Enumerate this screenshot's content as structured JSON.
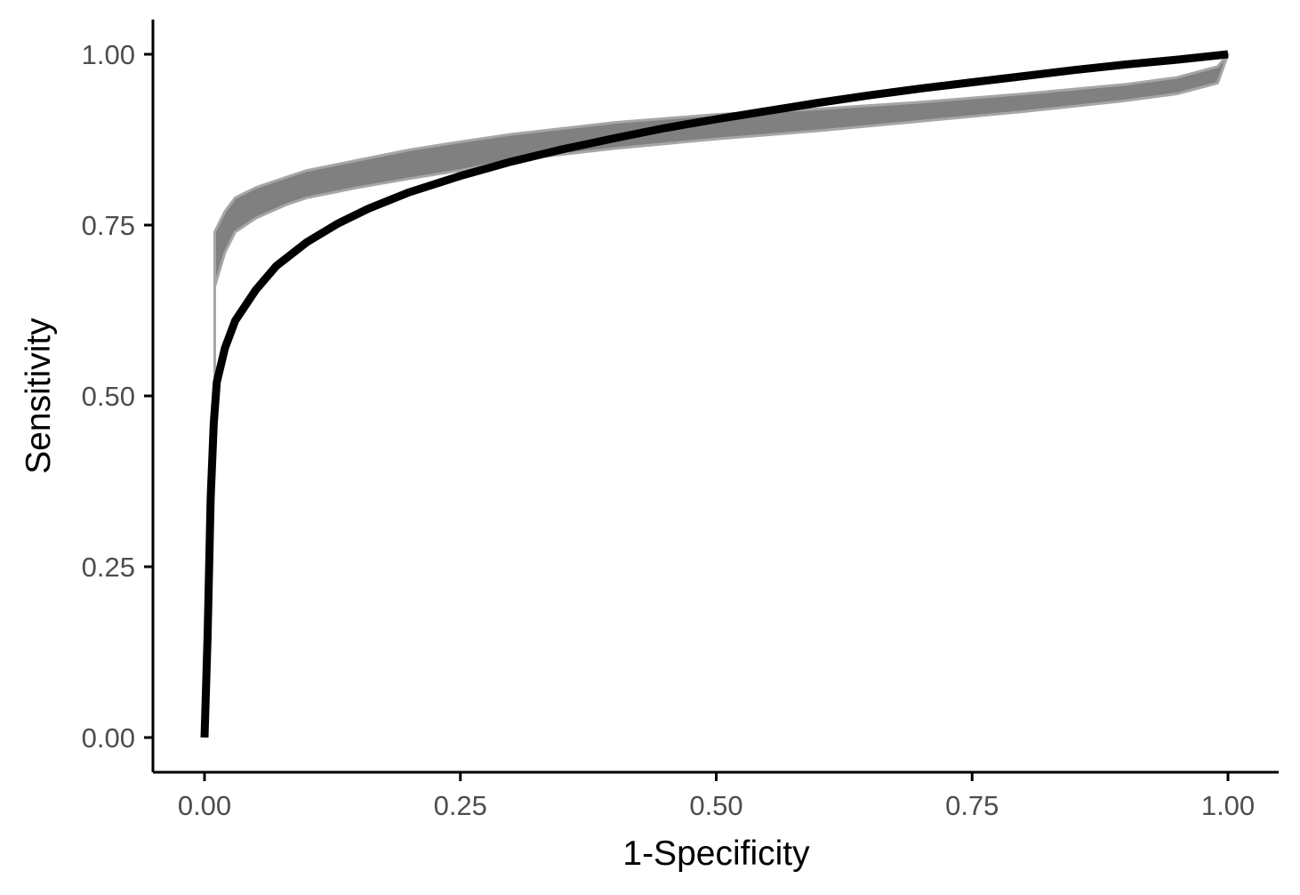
{
  "chart_data": {
    "type": "line",
    "title": "",
    "xlabel": "1-Specificity",
    "ylabel": "Sensitivity",
    "xlim": [
      0,
      1
    ],
    "ylim": [
      0,
      1
    ],
    "grid": false,
    "legend": "none",
    "x_ticks": [
      "0.00",
      "0.25",
      "0.50",
      "0.75",
      "1.00"
    ],
    "y_ticks": [
      "0.00",
      "0.25",
      "0.50",
      "0.75",
      "1.00"
    ],
    "colors": {
      "band": "#808080",
      "band_edge": "#a6a6a6",
      "main_line": "#000000",
      "axis": "#000000",
      "tick_text": "#4d4d4d"
    },
    "series": [
      {
        "role": "bootstrap-band-upper",
        "x": [
          0.01,
          0.01,
          0.02,
          0.03,
          0.05,
          0.08,
          0.1,
          0.15,
          0.2,
          0.25,
          0.3,
          0.4,
          0.5,
          0.6,
          0.7,
          0.8,
          0.9,
          0.95,
          0.99,
          1.0
        ],
        "y": [
          0.66,
          0.74,
          0.77,
          0.79,
          0.805,
          0.82,
          0.83,
          0.845,
          0.86,
          0.872,
          0.883,
          0.9,
          0.912,
          0.92,
          0.93,
          0.942,
          0.956,
          0.966,
          0.982,
          1.0
        ]
      },
      {
        "role": "bootstrap-band-lower",
        "x": [
          0.01,
          0.01,
          0.02,
          0.03,
          0.05,
          0.08,
          0.1,
          0.15,
          0.2,
          0.25,
          0.3,
          0.4,
          0.5,
          0.6,
          0.7,
          0.8,
          0.9,
          0.95,
          0.99,
          1.0
        ],
        "y": [
          0.52,
          0.66,
          0.71,
          0.74,
          0.76,
          0.78,
          0.79,
          0.805,
          0.818,
          0.83,
          0.845,
          0.862,
          0.876,
          0.888,
          0.902,
          0.916,
          0.932,
          0.942,
          0.958,
          1.0
        ]
      },
      {
        "role": "main-roc-curve",
        "x": [
          0.0,
          0.003,
          0.006,
          0.009,
          0.012,
          0.02,
          0.03,
          0.05,
          0.07,
          0.1,
          0.13,
          0.16,
          0.2,
          0.25,
          0.3,
          0.35,
          0.4,
          0.45,
          0.5,
          0.55,
          0.6,
          0.65,
          0.7,
          0.75,
          0.8,
          0.85,
          0.9,
          0.95,
          1.0
        ],
        "y": [
          0.0,
          0.15,
          0.35,
          0.46,
          0.52,
          0.57,
          0.61,
          0.655,
          0.69,
          0.725,
          0.752,
          0.774,
          0.798,
          0.822,
          0.843,
          0.861,
          0.877,
          0.892,
          0.905,
          0.917,
          0.929,
          0.94,
          0.95,
          0.959,
          0.968,
          0.977,
          0.985,
          0.992,
          1.0
        ]
      }
    ]
  }
}
